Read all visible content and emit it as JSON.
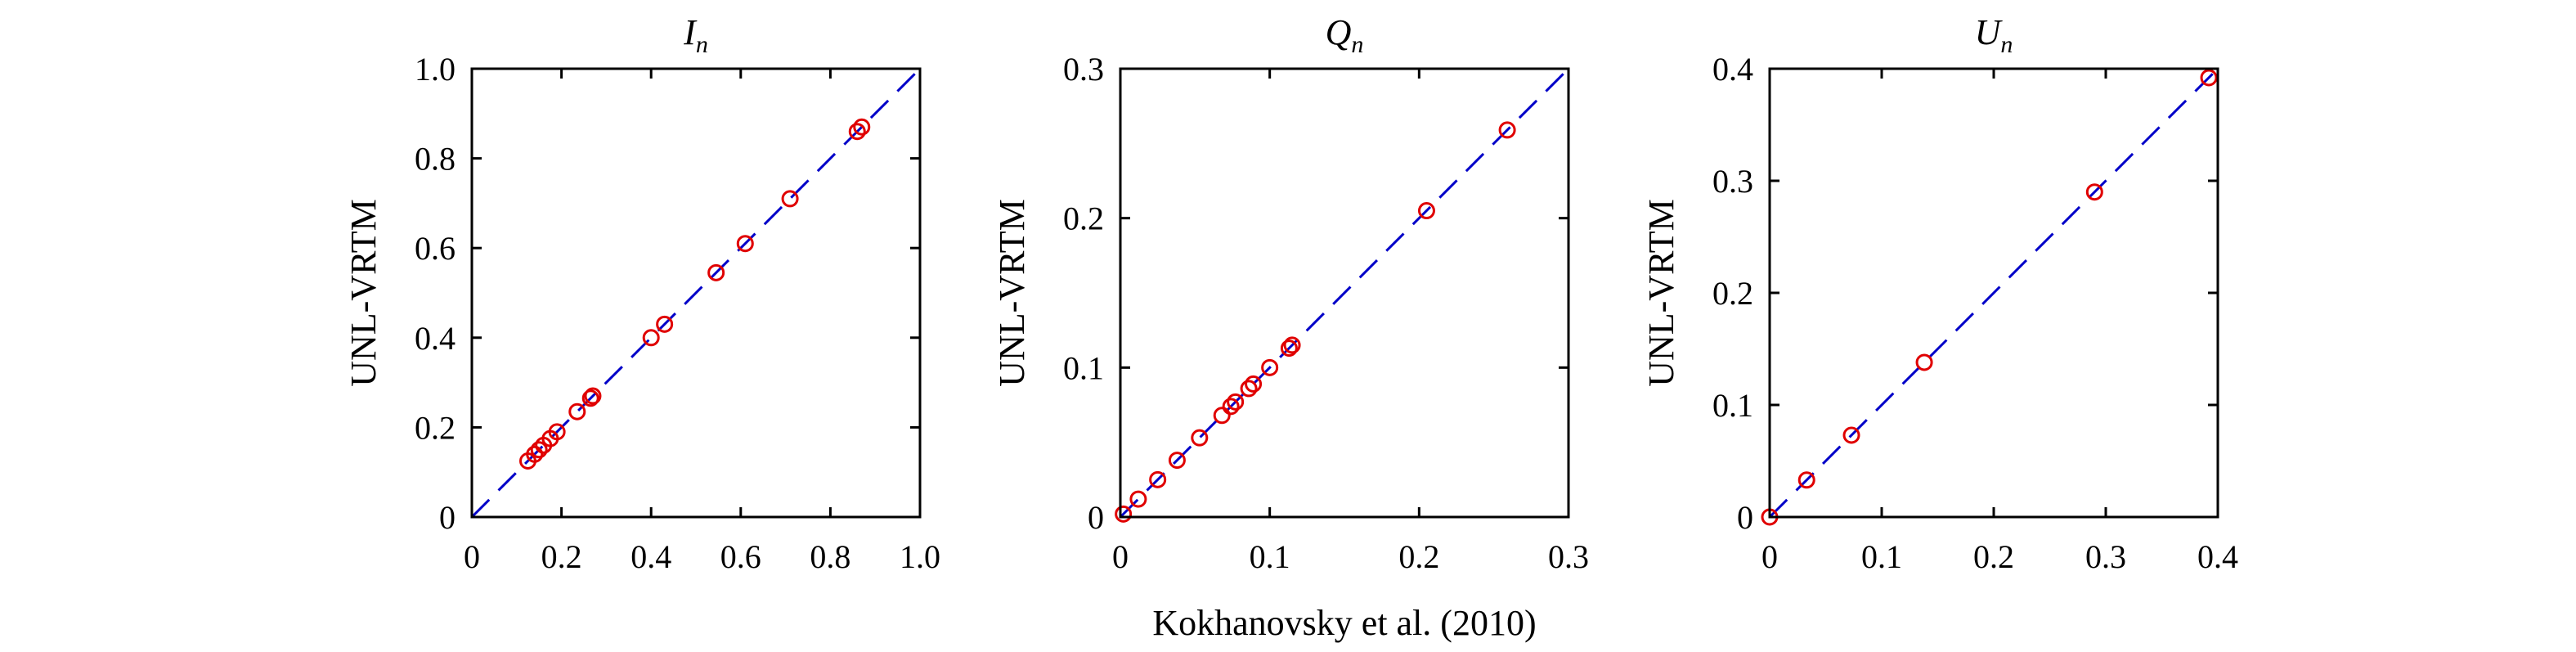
{
  "figure": {
    "shared_xlabel": "Kokhanovsky et al. (2010)"
  },
  "chart_data": [
    {
      "type": "scatter",
      "title": "I",
      "title_subscript": "n",
      "xlabel": "",
      "ylabel": "UNL-VRTM",
      "xlim": [
        0,
        1.0
      ],
      "ylim": [
        0,
        1.0
      ],
      "xticks": [
        "0",
        "0.2",
        "0.4",
        "0.6",
        "0.8",
        "1.0"
      ],
      "yticks": [
        "0",
        "0.2",
        "0.4",
        "0.6",
        "0.8",
        "1.0"
      ],
      "grid": false,
      "series": [
        {
          "marker": "circle-open",
          "color": "#e00000",
          "points": [
            [
              0.125,
              0.125
            ],
            [
              0.14,
              0.14
            ],
            [
              0.15,
              0.15
            ],
            [
              0.16,
              0.16
            ],
            [
              0.175,
              0.175
            ],
            [
              0.19,
              0.19
            ],
            [
              0.235,
              0.235
            ],
            [
              0.265,
              0.265
            ],
            [
              0.27,
              0.27
            ],
            [
              0.4,
              0.4
            ],
            [
              0.43,
              0.43
            ],
            [
              0.545,
              0.545
            ],
            [
              0.61,
              0.61
            ],
            [
              0.71,
              0.71
            ],
            [
              0.86,
              0.86
            ],
            [
              0.87,
              0.87
            ]
          ]
        },
        {
          "style": "dashed-line",
          "color": "#0000c8",
          "points": [
            [
              0,
              0
            ],
            [
              1.0,
              1.0
            ]
          ]
        }
      ]
    },
    {
      "type": "scatter",
      "title": "Q",
      "title_subscript": "n",
      "xlabel": "",
      "ylabel": "UNL-VRTM",
      "xlim": [
        0,
        0.3
      ],
      "ylim": [
        0,
        0.3
      ],
      "xticks": [
        "0",
        "0.1",
        "0.2",
        "0.3"
      ],
      "yticks": [
        "0",
        "0.1",
        "0.2",
        "0.3"
      ],
      "grid": false,
      "series": [
        {
          "marker": "circle-open",
          "color": "#e00000",
          "points": [
            [
              0.002,
              0.002
            ],
            [
              0.012,
              0.012
            ],
            [
              0.025,
              0.025
            ],
            [
              0.038,
              0.038
            ],
            [
              0.053,
              0.053
            ],
            [
              0.068,
              0.068
            ],
            [
              0.074,
              0.074
            ],
            [
              0.077,
              0.077
            ],
            [
              0.086,
              0.086
            ],
            [
              0.089,
              0.089
            ],
            [
              0.1,
              0.1
            ],
            [
              0.113,
              0.113
            ],
            [
              0.115,
              0.115
            ],
            [
              0.205,
              0.205
            ],
            [
              0.259,
              0.259
            ]
          ]
        },
        {
          "style": "dashed-line",
          "color": "#0000c8",
          "points": [
            [
              0,
              0
            ],
            [
              0.3,
              0.3
            ]
          ]
        }
      ]
    },
    {
      "type": "scatter",
      "title": "U",
      "title_subscript": "n",
      "xlabel": "",
      "ylabel": "UNL-VRTM",
      "xlim": [
        0,
        0.4
      ],
      "ylim": [
        0,
        0.4
      ],
      "xticks": [
        "0",
        "0.1",
        "0.2",
        "0.3",
        "0.4"
      ],
      "yticks": [
        "0",
        "0.1",
        "0.2",
        "0.3",
        "0.4"
      ],
      "grid": false,
      "series": [
        {
          "marker": "circle-open",
          "color": "#e00000",
          "points": [
            [
              0.0,
              0.0
            ],
            [
              0.033,
              0.033
            ],
            [
              0.073,
              0.073
            ],
            [
              0.138,
              0.138
            ],
            [
              0.29,
              0.29
            ],
            [
              0.392,
              0.392
            ]
          ]
        },
        {
          "style": "dashed-line",
          "color": "#0000c8",
          "points": [
            [
              0,
              0
            ],
            [
              0.4,
              0.4
            ]
          ]
        }
      ]
    }
  ]
}
